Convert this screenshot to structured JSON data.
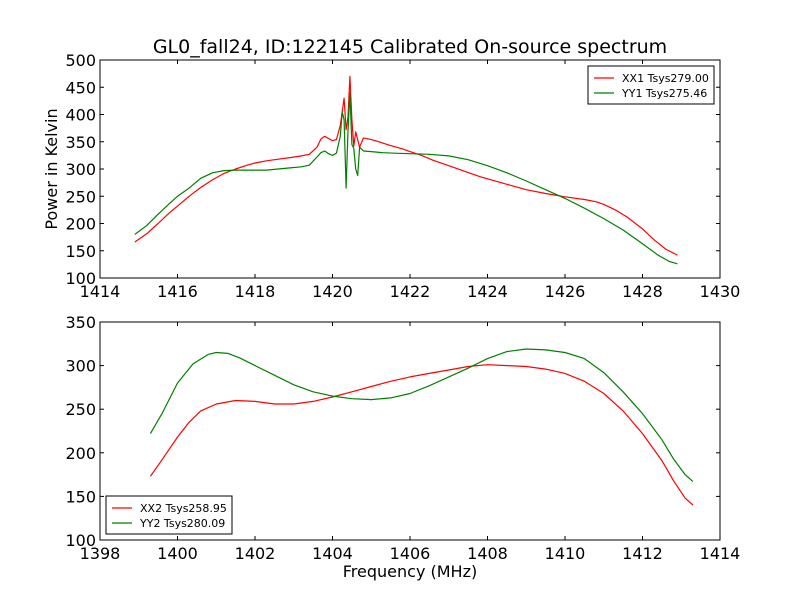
{
  "title": "GL0_fall24, ID:122145 Calibrated On-source spectrum",
  "chart_data": [
    {
      "type": "line",
      "xlabel": "",
      "ylabel": "Power in Kelvin",
      "xlim": [
        1414,
        1430
      ],
      "ylim": [
        100,
        500
      ],
      "xticks": [
        1414,
        1416,
        1418,
        1420,
        1422,
        1424,
        1426,
        1428,
        1430
      ],
      "yticks": [
        100,
        150,
        200,
        250,
        300,
        350,
        400,
        450,
        500
      ],
      "legend_position": "top-right",
      "series": [
        {
          "name": "XX1 Tsys279.00",
          "color": "#ff0000",
          "points": [
            [
              1414.9,
              166
            ],
            [
              1415.2,
              181
            ],
            [
              1415.5,
              200
            ],
            [
              1415.8,
              220
            ],
            [
              1416.0,
              232
            ],
            [
              1416.3,
              250
            ],
            [
              1416.6,
              266
            ],
            [
              1416.9,
              280
            ],
            [
              1417.2,
              292
            ],
            [
              1417.5,
              300
            ],
            [
              1417.8,
              307
            ],
            [
              1418.0,
              311
            ],
            [
              1418.3,
              315
            ],
            [
              1418.6,
              318
            ],
            [
              1418.9,
              321
            ],
            [
              1419.2,
              324
            ],
            [
              1419.4,
              327
            ],
            [
              1419.6,
              340
            ],
            [
              1419.7,
              355
            ],
            [
              1419.8,
              360
            ],
            [
              1419.9,
              356
            ],
            [
              1420.0,
              352
            ],
            [
              1420.1,
              354
            ],
            [
              1420.2,
              380
            ],
            [
              1420.3,
              430
            ],
            [
              1420.35,
              372
            ],
            [
              1420.4,
              395
            ],
            [
              1420.45,
              470
            ],
            [
              1420.5,
              390
            ],
            [
              1420.55,
              342
            ],
            [
              1420.6,
              368
            ],
            [
              1420.7,
              340
            ],
            [
              1420.8,
              357
            ],
            [
              1421.0,
              354
            ],
            [
              1421.2,
              350
            ],
            [
              1421.5,
              343
            ],
            [
              1421.8,
              337
            ],
            [
              1422.0,
              332
            ],
            [
              1422.3,
              325
            ],
            [
              1422.6,
              316
            ],
            [
              1423.0,
              306
            ],
            [
              1423.4,
              296
            ],
            [
              1423.8,
              286
            ],
            [
              1424.0,
              282
            ],
            [
              1424.5,
              272
            ],
            [
              1425.0,
              262
            ],
            [
              1425.5,
              255
            ],
            [
              1426.0,
              249
            ],
            [
              1426.5,
              244
            ],
            [
              1426.8,
              240
            ],
            [
              1427.0,
              235
            ],
            [
              1427.3,
              225
            ],
            [
              1427.6,
              212
            ],
            [
              1428.0,
              190
            ],
            [
              1428.3,
              170
            ],
            [
              1428.6,
              153
            ],
            [
              1428.9,
              142
            ]
          ]
        },
        {
          "name": "YY1 Tsys275.46",
          "color": "#008000",
          "points": [
            [
              1414.9,
              180
            ],
            [
              1415.2,
              196
            ],
            [
              1415.5,
              217
            ],
            [
              1415.8,
              237
            ],
            [
              1416.0,
              250
            ],
            [
              1416.3,
              265
            ],
            [
              1416.6,
              283
            ],
            [
              1416.9,
              293
            ],
            [
              1417.2,
              297
            ],
            [
              1417.5,
              298
            ],
            [
              1417.8,
              298
            ],
            [
              1418.0,
              298
            ],
            [
              1418.3,
              298
            ],
            [
              1418.6,
              300
            ],
            [
              1418.9,
              302
            ],
            [
              1419.2,
              304
            ],
            [
              1419.4,
              307
            ],
            [
              1419.6,
              322
            ],
            [
              1419.7,
              330
            ],
            [
              1419.8,
              333
            ],
            [
              1419.9,
              328
            ],
            [
              1420.0,
              325
            ],
            [
              1420.1,
              329
            ],
            [
              1420.2,
              360
            ],
            [
              1420.25,
              405
            ],
            [
              1420.3,
              390
            ],
            [
              1420.35,
              265
            ],
            [
              1420.4,
              370
            ],
            [
              1420.45,
              440
            ],
            [
              1420.5,
              345
            ],
            [
              1420.55,
              338
            ],
            [
              1420.6,
              300
            ],
            [
              1420.65,
              288
            ],
            [
              1420.7,
              340
            ],
            [
              1420.8,
              333
            ],
            [
              1421.0,
              332
            ],
            [
              1421.3,
              330
            ],
            [
              1421.6,
              329
            ],
            [
              1422.0,
              328
            ],
            [
              1422.5,
              327
            ],
            [
              1423.0,
              324
            ],
            [
              1423.5,
              317
            ],
            [
              1424.0,
              306
            ],
            [
              1424.5,
              293
            ],
            [
              1425.0,
              278
            ],
            [
              1425.5,
              262
            ],
            [
              1426.0,
              246
            ],
            [
              1426.5,
              228
            ],
            [
              1427.0,
              209
            ],
            [
              1427.5,
              188
            ],
            [
              1428.0,
              163
            ],
            [
              1428.4,
              142
            ],
            [
              1428.7,
              130
            ],
            [
              1428.9,
              126
            ]
          ]
        }
      ]
    },
    {
      "type": "line",
      "xlabel": "Frequency (MHz)",
      "ylabel": "",
      "xlim": [
        1398,
        1414
      ],
      "ylim": [
        100,
        350
      ],
      "xticks": [
        1398,
        1400,
        1402,
        1404,
        1406,
        1408,
        1410,
        1412,
        1414
      ],
      "yticks": [
        100,
        150,
        200,
        250,
        300,
        350
      ],
      "legend_position": "bottom-left",
      "series": [
        {
          "name": "XX2 Tsys258.95",
          "color": "#ff0000",
          "points": [
            [
              1399.3,
              173
            ],
            [
              1399.6,
              192
            ],
            [
              1400.0,
              218
            ],
            [
              1400.3,
              235
            ],
            [
              1400.6,
              248
            ],
            [
              1401.0,
              256
            ],
            [
              1401.5,
              260
            ],
            [
              1402.0,
              259
            ],
            [
              1402.5,
              256
            ],
            [
              1403.0,
              256
            ],
            [
              1403.5,
              259
            ],
            [
              1404.0,
              264
            ],
            [
              1404.5,
              270
            ],
            [
              1405.0,
              276
            ],
            [
              1405.5,
              282
            ],
            [
              1406.0,
              287
            ],
            [
              1406.5,
              291
            ],
            [
              1407.0,
              295
            ],
            [
              1407.5,
              299
            ],
            [
              1408.0,
              301
            ],
            [
              1408.5,
              300
            ],
            [
              1409.0,
              299
            ],
            [
              1409.5,
              296
            ],
            [
              1410.0,
              291
            ],
            [
              1410.5,
              282
            ],
            [
              1411.0,
              268
            ],
            [
              1411.5,
              248
            ],
            [
              1412.0,
              222
            ],
            [
              1412.5,
              191
            ],
            [
              1412.8,
              168
            ],
            [
              1413.1,
              148
            ],
            [
              1413.3,
              140
            ]
          ]
        },
        {
          "name": "YY2 Tsys280.09",
          "color": "#008000",
          "points": [
            [
              1399.3,
              222
            ],
            [
              1399.6,
              245
            ],
            [
              1400.0,
              280
            ],
            [
              1400.4,
              302
            ],
            [
              1400.8,
              313
            ],
            [
              1401.0,
              315
            ],
            [
              1401.3,
              314
            ],
            [
              1401.6,
              309
            ],
            [
              1402.0,
              300
            ],
            [
              1402.5,
              289
            ],
            [
              1403.0,
              278
            ],
            [
              1403.5,
              270
            ],
            [
              1404.0,
              265
            ],
            [
              1404.5,
              262
            ],
            [
              1405.0,
              261
            ],
            [
              1405.5,
              263
            ],
            [
              1406.0,
              268
            ],
            [
              1406.5,
              277
            ],
            [
              1407.0,
              287
            ],
            [
              1407.5,
              297
            ],
            [
              1408.0,
              308
            ],
            [
              1408.5,
              316
            ],
            [
              1409.0,
              319
            ],
            [
              1409.5,
              318
            ],
            [
              1410.0,
              315
            ],
            [
              1410.5,
              308
            ],
            [
              1411.0,
              292
            ],
            [
              1411.5,
              270
            ],
            [
              1412.0,
              245
            ],
            [
              1412.5,
              215
            ],
            [
              1412.8,
              193
            ],
            [
              1413.1,
              175
            ],
            [
              1413.3,
              167
            ]
          ]
        }
      ]
    }
  ]
}
